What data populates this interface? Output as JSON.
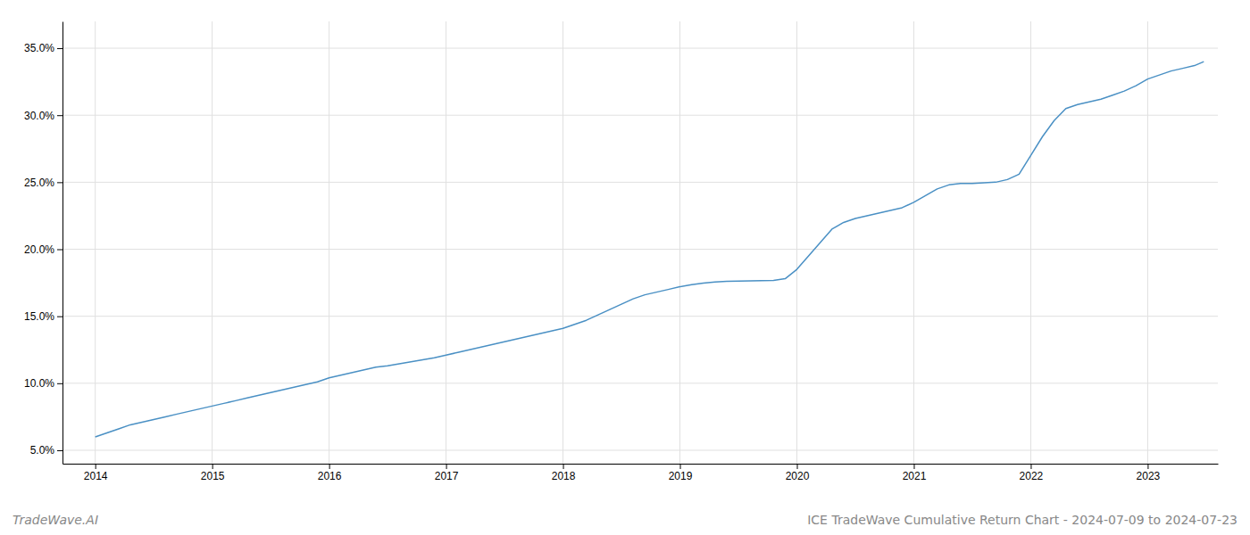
{
  "chart_data": {
    "type": "line",
    "title": "ICE TradeWave Cumulative Return Chart - 2024-07-09 to 2024-07-23",
    "annotations": [
      "TradeWave.AI"
    ],
    "color": "#4a90c4",
    "grid": true,
    "x": [
      2014.0,
      2014.1,
      2014.2,
      2014.3,
      2014.4,
      2014.5,
      2014.6,
      2014.7,
      2014.8,
      2014.9,
      2015.0,
      2015.1,
      2015.2,
      2015.3,
      2015.4,
      2015.5,
      2015.6,
      2015.7,
      2015.8,
      2015.9,
      2016.0,
      2016.1,
      2016.2,
      2016.3,
      2016.4,
      2016.5,
      2016.6,
      2016.7,
      2016.8,
      2016.9,
      2017.0,
      2017.1,
      2017.2,
      2017.3,
      2017.4,
      2017.5,
      2017.6,
      2017.7,
      2017.8,
      2017.9,
      2018.0,
      2018.1,
      2018.2,
      2018.3,
      2018.4,
      2018.5,
      2018.6,
      2018.7,
      2018.8,
      2018.9,
      2019.0,
      2019.1,
      2019.2,
      2019.3,
      2019.4,
      2019.5,
      2019.6,
      2019.7,
      2019.8,
      2019.9,
      2020.0,
      2020.1,
      2020.2,
      2020.3,
      2020.4,
      2020.5,
      2020.6,
      2020.7,
      2020.8,
      2020.9,
      2021.0,
      2021.1,
      2021.2,
      2021.3,
      2021.4,
      2021.5,
      2021.6,
      2021.7,
      2021.8,
      2021.9,
      2022.0,
      2022.1,
      2022.2,
      2022.3,
      2022.4,
      2022.5,
      2022.6,
      2022.7,
      2022.8,
      2022.9,
      2023.0,
      2023.1,
      2023.2,
      2023.3,
      2023.4,
      2023.48
    ],
    "values": [
      0.06,
      0.063,
      0.066,
      0.069,
      0.071,
      0.073,
      0.075,
      0.077,
      0.079,
      0.081,
      0.083,
      0.085,
      0.087,
      0.089,
      0.091,
      0.093,
      0.095,
      0.097,
      0.099,
      0.101,
      0.104,
      0.106,
      0.108,
      0.11,
      0.112,
      0.113,
      0.1145,
      0.116,
      0.1175,
      0.119,
      0.121,
      0.123,
      0.125,
      0.127,
      0.129,
      0.131,
      0.133,
      0.135,
      0.137,
      0.139,
      0.141,
      0.144,
      0.147,
      0.151,
      0.155,
      0.159,
      0.163,
      0.166,
      0.168,
      0.17,
      0.172,
      0.1735,
      0.1748,
      0.1755,
      0.176,
      0.1762,
      0.1764,
      0.1766,
      0.1768,
      0.178,
      0.185,
      0.195,
      0.205,
      0.215,
      0.22,
      0.223,
      0.225,
      0.227,
      0.229,
      0.231,
      0.235,
      0.24,
      0.245,
      0.248,
      0.249,
      0.249,
      0.2495,
      0.25,
      0.252,
      0.256,
      0.27,
      0.284,
      0.296,
      0.305,
      0.308,
      0.31,
      0.312,
      0.315,
      0.318,
      0.322,
      0.327,
      0.33,
      0.333,
      0.335,
      0.337,
      0.34
    ],
    "xlim": [
      2013.72,
      2023.6
    ],
    "ylim": [
      0.04,
      0.37
    ],
    "xticks": [
      2014,
      2015,
      2016,
      2017,
      2018,
      2019,
      2020,
      2021,
      2022,
      2023
    ],
    "yticks": [
      {
        "value": 0.05,
        "label": "5.0%"
      },
      {
        "value": 0.1,
        "label": "10.0%"
      },
      {
        "value": 0.15,
        "label": "15.0%"
      },
      {
        "value": 0.2,
        "label": "20.0%"
      },
      {
        "value": 0.25,
        "label": "25.0%"
      },
      {
        "value": 0.3,
        "label": "30.0%"
      },
      {
        "value": 0.35,
        "label": "35.0%"
      }
    ]
  }
}
